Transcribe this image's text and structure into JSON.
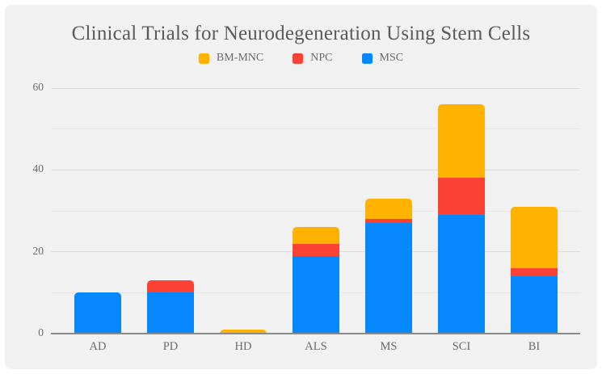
{
  "page": {
    "background": "#ffffff",
    "card_background": "#f1f1f2",
    "axis_line_color": "#8a8a8a",
    "text_color": "#6b6b6b",
    "title_color": "#5a5a5a"
  },
  "chart_data": {
    "type": "bar",
    "stacked": true,
    "title": "Clinical Trials for Neurodegeneration Using Stem Cells",
    "categories": [
      "AD",
      "PD",
      "HD",
      "ALS",
      "MS",
      "SCI",
      "BI"
    ],
    "series": [
      {
        "name": "BM-MNC",
        "color": "#ffb200",
        "values": [
          0,
          0,
          1,
          4,
          5,
          18,
          15
        ]
      },
      {
        "name": "NPC",
        "color": "#fa4334",
        "values": [
          0,
          3,
          0,
          3,
          1,
          9,
          2
        ]
      },
      {
        "name": "MSC",
        "color": "#0687fb",
        "values": [
          10,
          10,
          0,
          19,
          27,
          29,
          14
        ]
      }
    ],
    "stack_order_bottom_to_top": [
      "MSC",
      "NPC",
      "BM-MNC"
    ],
    "totals": [
      10,
      13,
      1,
      26,
      33,
      56,
      31
    ],
    "xlabel": "",
    "ylabel": "",
    "ylim": [
      0,
      60
    ],
    "yticks_labeled": [
      0,
      20,
      40,
      60
    ],
    "gridlines_major": [
      20,
      40,
      60
    ],
    "gridlines_minor": [
      10,
      30,
      50
    ],
    "grid": true,
    "legend_position": "top",
    "legend_order": [
      "BM-MNC",
      "NPC",
      "MSC"
    ]
  }
}
